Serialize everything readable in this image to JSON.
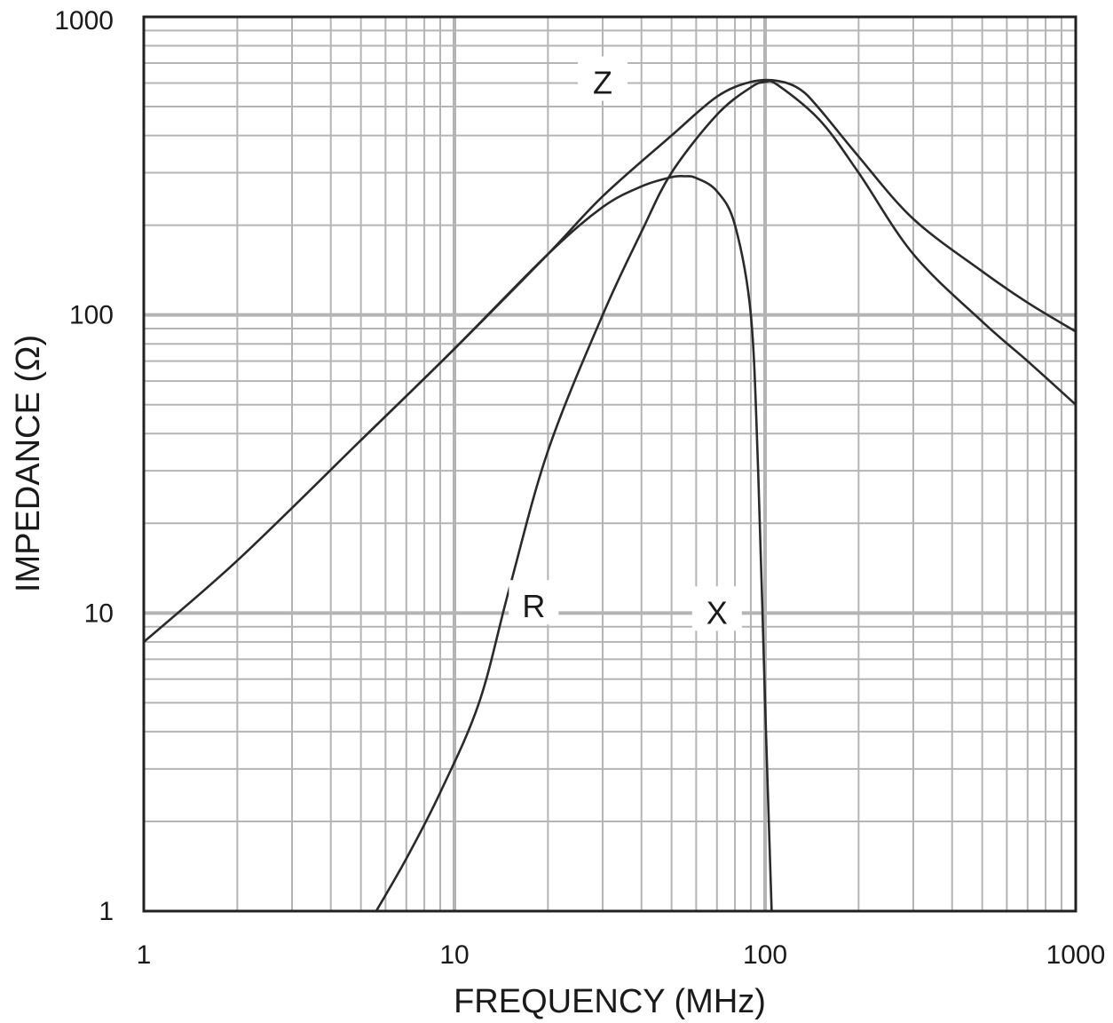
{
  "chart_data": {
    "type": "line",
    "xlabel": "FREQUENCY (MHz)",
    "ylabel": "IMPEDANCE (Ω)",
    "x_scale": "log",
    "y_scale": "log",
    "xlim": [
      1,
      1000
    ],
    "ylim": [
      1,
      1000
    ],
    "x_ticks": [
      "1",
      "10",
      "100",
      "1000"
    ],
    "y_ticks": [
      "1",
      "10",
      "100",
      "1000"
    ],
    "grid": true,
    "series": [
      {
        "name": "Z",
        "x": [
          1,
          2,
          5,
          10,
          20,
          30,
          50,
          70,
          90,
          110,
          130,
          150,
          200,
          300,
          500,
          700,
          1000
        ],
        "y": [
          8,
          15,
          38,
          77,
          160,
          250,
          400,
          540,
          605,
          610,
          570,
          490,
          340,
          210,
          140,
          110,
          88
        ]
      },
      {
        "name": "R",
        "x": [
          5.6,
          7,
          9,
          12,
          15,
          20,
          30,
          40,
          50,
          70,
          90,
          100,
          110,
          150,
          200,
          300,
          500,
          700,
          1000
        ],
        "y": [
          1,
          1.5,
          2.5,
          5,
          12,
          35,
          100,
          190,
          300,
          470,
          580,
          605,
          590,
          450,
          300,
          160,
          95,
          70,
          50
        ]
      },
      {
        "name": "X",
        "x": [
          5,
          10,
          20,
          30,
          40,
          50,
          55,
          60,
          70,
          80,
          90,
          95,
          100,
          105
        ],
        "y": [
          38,
          77,
          160,
          230,
          270,
          290,
          292,
          288,
          260,
          200,
          100,
          30,
          5,
          1
        ]
      }
    ],
    "annotations": [
      {
        "text": "Z",
        "x": 30,
        "y": 600
      },
      {
        "text": "R",
        "x": 18,
        "y": 10.5
      },
      {
        "text": "X",
        "x": 70,
        "y": 10
      }
    ]
  }
}
